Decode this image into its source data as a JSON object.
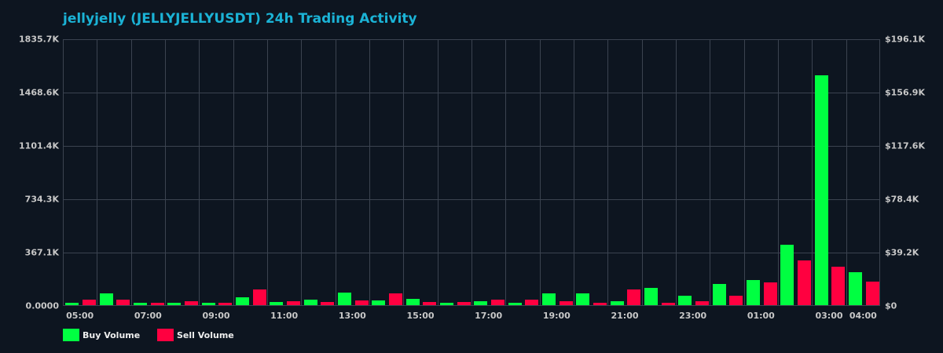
{
  "title": "jellyjelly (JELLYJELLYUSDT) 24h Trading Activity",
  "colors": {
    "background": "#0d1520",
    "title": "#1bb3d6",
    "grid": "#3b4350",
    "buy": "#00ff41",
    "sell": "#ff0040",
    "axis_text": "#c8c8c8"
  },
  "legend": {
    "buy_label": "Buy Volume",
    "sell_label": "Sell Volume"
  },
  "chart_data": {
    "type": "bar",
    "title": "jellyjelly (JELLYJELLYUSDT) 24h Trading Activity",
    "xlabel": "",
    "ylabel": "",
    "ylim": [
      0,
      1835.7
    ],
    "y_unit": "K",
    "y_right_lim": [
      0,
      196.1
    ],
    "y_right_unit": "$K",
    "grid": true,
    "legend_position": "bottom-left",
    "left_ticks": [
      "0.0000",
      "367.1K",
      "734.3K",
      "1101.4K",
      "1468.6K",
      "1835.7K"
    ],
    "right_ticks": [
      "$0",
      "$39.2K",
      "$78.4K",
      "$117.6K",
      "$156.9K",
      "$196.1K"
    ],
    "x_tick_labels": [
      {
        "label": "05:00",
        "hour_index": 0
      },
      {
        "label": "07:00",
        "hour_index": 2
      },
      {
        "label": "09:00",
        "hour_index": 4
      },
      {
        "label": "11:00",
        "hour_index": 6
      },
      {
        "label": "13:00",
        "hour_index": 8
      },
      {
        "label": "15:00",
        "hour_index": 10
      },
      {
        "label": "17:00",
        "hour_index": 12
      },
      {
        "label": "19:00",
        "hour_index": 14
      },
      {
        "label": "21:00",
        "hour_index": 16
      },
      {
        "label": "23:00",
        "hour_index": 18
      },
      {
        "label": "01:00",
        "hour_index": 20
      },
      {
        "label": "03:00",
        "hour_index": 22
      },
      {
        "label": "04:00",
        "hour_index": 23
      }
    ],
    "categories": [
      "05:00",
      "06:00",
      "07:00",
      "08:00",
      "09:00",
      "10:00",
      "11:00",
      "12:00",
      "13:00",
      "14:00",
      "15:00",
      "16:00",
      "17:00",
      "18:00",
      "19:00",
      "20:00",
      "21:00",
      "22:00",
      "23:00",
      "00:00",
      "01:00",
      "02:00",
      "03:00",
      "04:00"
    ],
    "series": [
      {
        "name": "Buy Volume",
        "color": "#00ff41",
        "values": [
          18,
          83,
          18,
          18,
          18,
          56,
          23,
          39,
          88,
          34,
          45,
          18,
          29,
          18,
          83,
          83,
          29,
          120,
          67,
          144,
          171,
          414,
          1584,
          225
        ]
      },
      {
        "name": "Sell Volume",
        "color": "#ff0040",
        "values": [
          39,
          39,
          18,
          29,
          18,
          110,
          29,
          23,
          34,
          83,
          23,
          23,
          39,
          39,
          29,
          18,
          110,
          18,
          25,
          67,
          155,
          306,
          263,
          160
        ]
      }
    ]
  }
}
